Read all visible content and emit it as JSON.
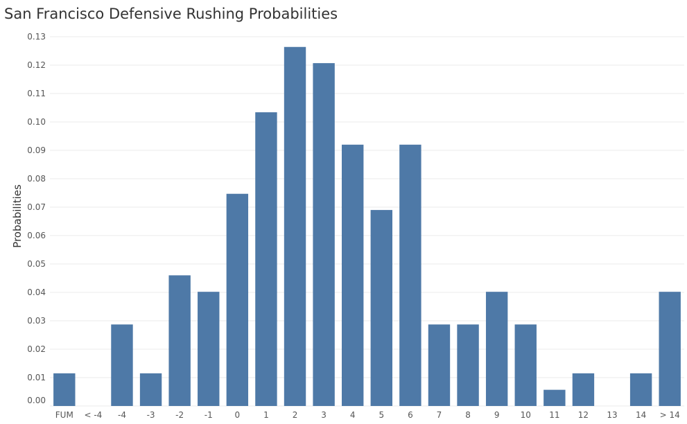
{
  "chart_data": {
    "type": "bar",
    "title": "San Francisco Defensive Rushing Probabilities",
    "xlabel": "",
    "ylabel": "Probabilities",
    "categories": [
      "FUM",
      "< -4",
      "-4",
      "-3",
      "-2",
      "-1",
      "0",
      "1",
      "2",
      "3",
      "4",
      "5",
      "6",
      "7",
      "8",
      "9",
      "10",
      "11",
      "12",
      "13",
      "14",
      "> 14"
    ],
    "values": [
      0.0115,
      0,
      0.0287,
      0.0115,
      0.046,
      0.0402,
      0.0747,
      0.1034,
      0.1264,
      0.1207,
      0.092,
      0.069,
      0.092,
      0.0287,
      0.0287,
      0.0402,
      0.0287,
      0.0057,
      0.0115,
      0,
      0.0115,
      0.0402
    ],
    "ylim": [
      0,
      0.13
    ],
    "yticks": [
      "0.00",
      "0.01",
      "0.02",
      "0.03",
      "0.04",
      "0.05",
      "0.06",
      "0.07",
      "0.08",
      "0.09",
      "0.10",
      "0.11",
      "0.12",
      "0.13"
    ],
    "grid": true,
    "bar_color": "#4e79a7",
    "grid_color": "#ebebeb"
  }
}
